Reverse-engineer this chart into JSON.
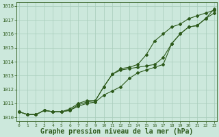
{
  "x": [
    0,
    1,
    2,
    3,
    4,
    5,
    6,
    7,
    8,
    9,
    10,
    11,
    12,
    13,
    14,
    15,
    16,
    17,
    18,
    19,
    20,
    21,
    22,
    23
  ],
  "line1": [
    1010.4,
    1010.2,
    1010.2,
    1010.5,
    1010.4,
    1010.4,
    1010.5,
    1010.9,
    1011.1,
    1011.2,
    1012.2,
    1013.1,
    1013.4,
    1013.5,
    1013.6,
    1013.7,
    1013.8,
    1014.3,
    1015.3,
    1016.0,
    1016.5,
    1016.6,
    1017.1,
    1017.5
  ],
  "line2": [
    1010.4,
    1010.2,
    1010.2,
    1010.5,
    1010.4,
    1010.4,
    1010.6,
    1011.0,
    1011.2,
    1011.2,
    1012.2,
    1013.1,
    1013.5,
    1013.6,
    1013.8,
    1014.5,
    1015.5,
    1016.0,
    1016.5,
    1016.7,
    1017.1,
    1017.3,
    1017.5,
    1017.7
  ],
  "line3": [
    1010.4,
    1010.2,
    1010.2,
    1010.5,
    1010.4,
    1010.4,
    1010.5,
    1010.8,
    1011.0,
    1011.1,
    1011.6,
    1011.9,
    1012.2,
    1012.8,
    1013.2,
    1013.4,
    1013.6,
    1013.8,
    1015.3,
    1016.0,
    1016.5,
    1016.6,
    1017.1,
    1017.8
  ],
  "line_color": "#2d5a1b",
  "bg_color": "#cce8dc",
  "grid_color": "#a8ccba",
  "xlabel": "Graphe pression niveau de la mer (hPa)",
  "ylim": [
    1009.7,
    1018.3
  ],
  "yticks": [
    1010,
    1011,
    1012,
    1013,
    1014,
    1015,
    1016,
    1017,
    1018
  ],
  "marker": "D",
  "markersize": 2.0,
  "linewidth": 0.8
}
